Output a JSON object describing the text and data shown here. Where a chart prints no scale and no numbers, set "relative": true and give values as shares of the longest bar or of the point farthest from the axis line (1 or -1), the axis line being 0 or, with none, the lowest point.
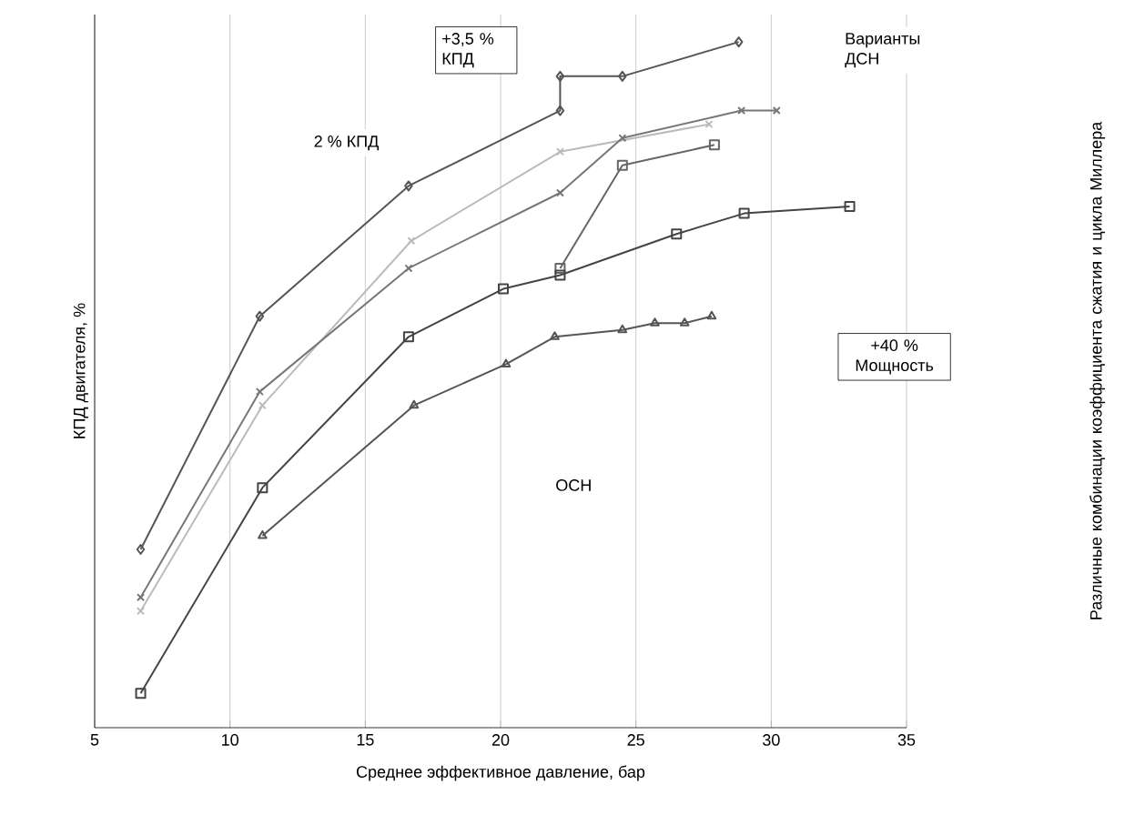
{
  "chart_data": {
    "type": "line",
    "relative": true,
    "xlabel": "Среднее эффективное давление, бар",
    "ylabel": "КПД двигателя, %",
    "xlim": [
      5,
      35
    ],
    "xticks": [
      5,
      10,
      15,
      20,
      25,
      30,
      35
    ],
    "grid": "x",
    "series": [
      {
        "color": "#555555",
        "marker": "diamond",
        "x": [
          6.7,
          11.1,
          16.6,
          22.2,
          22.2,
          24.5,
          28.8
        ],
        "values": [
          0.26,
          0.6,
          0.79,
          0.9,
          0.95,
          0.95,
          1.0
        ]
      },
      {
        "color": "#bbbbbb",
        "marker": "cross",
        "x": [
          6.7,
          11.2,
          16.7,
          22.2,
          27.7
        ],
        "values": [
          0.17,
          0.47,
          0.71,
          0.84,
          0.88
        ]
      },
      {
        "color": "#777777",
        "marker": "cross",
        "x": [
          6.7,
          11.1,
          16.6,
          22.2,
          24.5,
          28.9,
          30.2
        ],
        "values": [
          0.19,
          0.49,
          0.67,
          0.78,
          0.86,
          0.9,
          0.9
        ]
      },
      {
        "color": "#666666",
        "marker": "square",
        "x": [
          22.2,
          24.5,
          27.9
        ],
        "values": [
          0.67,
          0.82,
          0.85
        ]
      },
      {
        "color": "#444444",
        "marker": "square",
        "x": [
          6.7,
          11.2,
          16.6,
          20.1,
          22.2,
          26.5,
          29.0,
          32.9
        ],
        "values": [
          0.05,
          0.35,
          0.57,
          0.64,
          0.66,
          0.72,
          0.75,
          0.76
        ]
      },
      {
        "color": "#555555",
        "marker": "triangle",
        "x": [
          11.2,
          16.8,
          20.2,
          22.0,
          24.5,
          25.7,
          26.8,
          27.8
        ],
        "values": [
          0.28,
          0.47,
          0.53,
          0.57,
          0.58,
          0.59,
          0.59,
          0.6
        ]
      }
    ],
    "annotations": [
      "2 % КПД",
      "+3,5 % КПД",
      "Варианты ДСН",
      "+40 % Мощность",
      "ОСН",
      "Различные комбинации коэффициента сжатия и цикла Миллера"
    ]
  }
}
